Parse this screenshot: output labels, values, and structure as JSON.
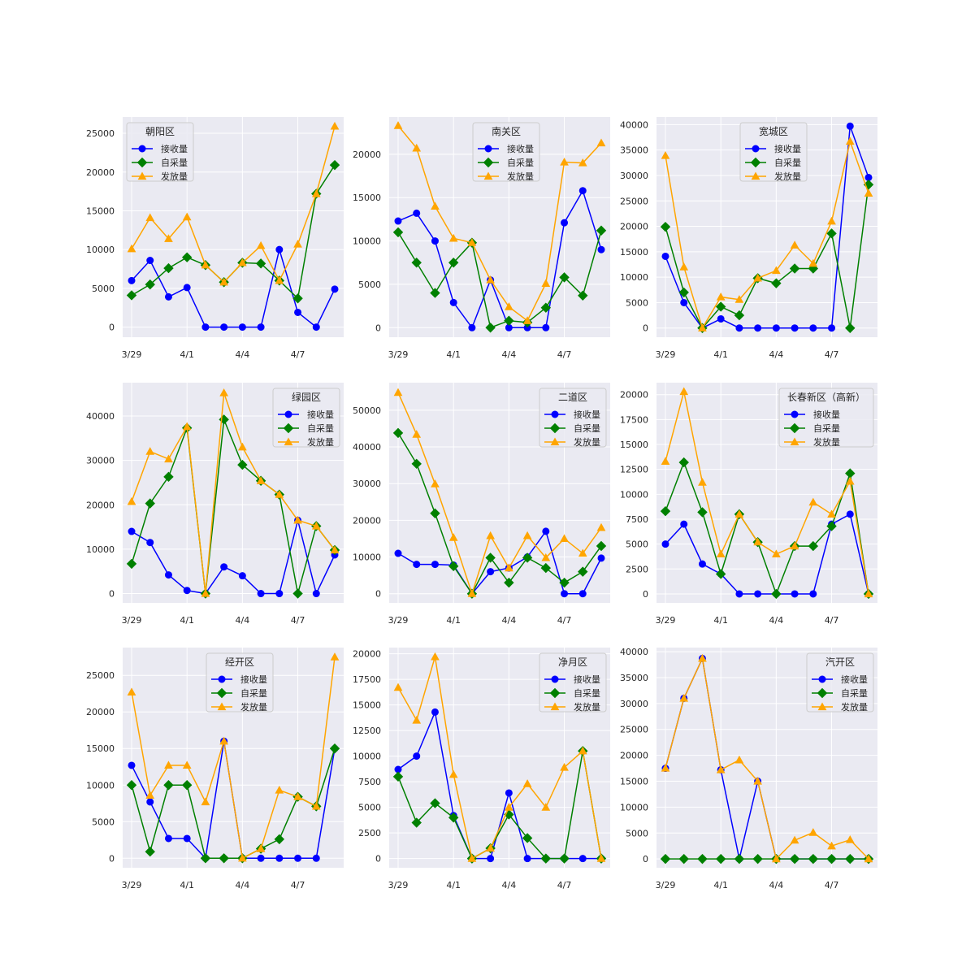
{
  "figure": {
    "x_tick_labels": [
      "3/29",
      "4/1",
      "4/4",
      "4/7"
    ],
    "x_tick_indices": [
      0,
      3,
      6,
      9
    ],
    "colors": {
      "接收量": "#0000ff",
      "自采量": "#008000",
      "发放量": "#ffa500",
      "plot_bg": "#eaeaf2",
      "grid": "#ffffff"
    }
  },
  "chart_data": [
    {
      "type": "line",
      "title": "朝阳区",
      "legend_position": "upper-left",
      "x": [
        "3/29",
        "3/30",
        "3/31",
        "4/1",
        "4/2",
        "4/3",
        "4/4",
        "4/5",
        "4/6",
        "4/7",
        "4/8",
        "4/9"
      ],
      "ylim": [
        -1300,
        27100
      ],
      "yticks": [
        0,
        5000,
        10000,
        15000,
        20000,
        25000
      ],
      "series": [
        {
          "name": "接收量",
          "marker": "circle",
          "values": [
            6000,
            8600,
            3900,
            5100,
            0,
            0,
            0,
            0,
            10000,
            1900,
            0,
            4900
          ]
        },
        {
          "name": "自采量",
          "marker": "diamond",
          "values": [
            4100,
            5500,
            7600,
            9000,
            8000,
            5800,
            8300,
            8200,
            6000,
            3700,
            17200,
            20900
          ]
        },
        {
          "name": "发放量",
          "marker": "triangle",
          "values": [
            10100,
            14100,
            11400,
            14200,
            8000,
            5800,
            8300,
            10500,
            6000,
            10700,
            17200,
            25900
          ]
        }
      ]
    },
    {
      "type": "line",
      "title": "南关区",
      "legend_position": "upper-center",
      "x": [
        "3/29",
        "3/30",
        "3/31",
        "4/1",
        "4/2",
        "4/3",
        "4/4",
        "4/5",
        "4/6",
        "4/7",
        "4/8",
        "4/9"
      ],
      "ylim": [
        -1100,
        24300
      ],
      "yticks": [
        0,
        5000,
        10000,
        15000,
        20000
      ],
      "series": [
        {
          "name": "接收量",
          "marker": "circle",
          "values": [
            12300,
            13200,
            10000,
            2900,
            0,
            5500,
            0,
            0,
            0,
            12100,
            15800,
            9000
          ]
        },
        {
          "name": "自采量",
          "marker": "diamond",
          "values": [
            11000,
            7500,
            4000,
            7500,
            9800,
            0,
            800,
            600,
            2300,
            5800,
            3700,
            11200
          ]
        },
        {
          "name": "发放量",
          "marker": "triangle",
          "values": [
            23300,
            20700,
            14000,
            10300,
            9800,
            5500,
            2400,
            800,
            5100,
            19100,
            19000,
            21300
          ]
        }
      ]
    },
    {
      "type": "line",
      "title": "宽城区",
      "legend_position": "upper-center",
      "x": [
        "3/29",
        "3/30",
        "3/31",
        "4/1",
        "4/2",
        "4/3",
        "4/4",
        "4/5",
        "4/6",
        "4/7",
        "4/8",
        "4/9"
      ],
      "ylim": [
        -1800,
        41500
      ],
      "yticks": [
        0,
        5000,
        10000,
        15000,
        20000,
        25000,
        30000,
        35000,
        40000
      ],
      "series": [
        {
          "name": "接收量",
          "marker": "circle",
          "values": [
            14100,
            5000,
            0,
            1800,
            0,
            0,
            0,
            0,
            0,
            0,
            39700,
            29600
          ]
        },
        {
          "name": "自采量",
          "marker": "diamond",
          "values": [
            19900,
            7000,
            0,
            4200,
            2500,
            9800,
            8800,
            11700,
            11700,
            18600,
            0,
            28200
          ]
        },
        {
          "name": "发放量",
          "marker": "triangle",
          "values": [
            33900,
            12000,
            0,
            6100,
            5600,
            9800,
            11300,
            16300,
            12700,
            21000,
            36700,
            26500
          ]
        }
      ]
    },
    {
      "type": "line",
      "title": "绿园区",
      "legend_position": "upper-right",
      "x": [
        "3/29",
        "3/30",
        "3/31",
        "4/1",
        "4/2",
        "4/3",
        "4/4",
        "4/5",
        "4/6",
        "4/7",
        "4/8",
        "4/9"
      ],
      "ylim": [
        -2100,
        47500
      ],
      "yticks": [
        0,
        10000,
        20000,
        30000,
        40000
      ],
      "series": [
        {
          "name": "接收量",
          "marker": "circle",
          "values": [
            14000,
            11500,
            4200,
            700,
            0,
            6000,
            4000,
            0,
            0,
            16500,
            0,
            8700
          ]
        },
        {
          "name": "自采量",
          "marker": "diamond",
          "values": [
            6700,
            20300,
            26300,
            37300,
            0,
            39200,
            29000,
            25400,
            22300,
            0,
            15200,
            9800
          ]
        },
        {
          "name": "发放量",
          "marker": "triangle",
          "values": [
            20700,
            32000,
            30300,
            37600,
            0,
            45200,
            33000,
            25400,
            22300,
            16500,
            15200,
            9800
          ]
        }
      ]
    },
    {
      "type": "line",
      "title": "二道区",
      "legend_position": "upper-right",
      "x": [
        "3/29",
        "3/30",
        "3/31",
        "4/1",
        "4/2",
        "4/3",
        "4/4",
        "4/5",
        "4/6",
        "4/7",
        "4/8",
        "4/9"
      ],
      "ylim": [
        -2500,
        57500
      ],
      "yticks": [
        0,
        10000,
        20000,
        30000,
        40000,
        50000
      ],
      "series": [
        {
          "name": "接收量",
          "marker": "circle",
          "values": [
            11000,
            8000,
            8000,
            7800,
            0,
            6000,
            7000,
            10000,
            17000,
            0,
            0,
            9700
          ]
        },
        {
          "name": "自采量",
          "marker": "diamond",
          "values": [
            43800,
            35400,
            21900,
            7500,
            0,
            9800,
            3000,
            9800,
            7000,
            3000,
            6000,
            13000
          ]
        },
        {
          "name": "发放量",
          "marker": "triangle",
          "values": [
            54800,
            43400,
            29900,
            15300,
            0,
            15800,
            7000,
            15800,
            9800,
            15000,
            11000,
            18000
          ]
        }
      ]
    },
    {
      "type": "line",
      "title": "长春新区（高新）",
      "legend_position": "upper-right",
      "x": [
        "3/29",
        "3/30",
        "3/31",
        "4/1",
        "4/2",
        "4/3",
        "4/4",
        "4/5",
        "4/6",
        "4/7",
        "4/8",
        "4/9"
      ],
      "ylim": [
        -900,
        21200
      ],
      "yticks": [
        0,
        2500,
        5000,
        7500,
        10000,
        12500,
        15000,
        17500,
        20000
      ],
      "series": [
        {
          "name": "接收量",
          "marker": "circle",
          "values": [
            5000,
            7000,
            3000,
            2000,
            0,
            0,
            0,
            0,
            0,
            7000,
            8000,
            0
          ]
        },
        {
          "name": "自采量",
          "marker": "diamond",
          "values": [
            8300,
            13200,
            8200,
            2000,
            8000,
            5200,
            0,
            4800,
            4800,
            6800,
            12100,
            0
          ]
        },
        {
          "name": "发放量",
          "marker": "triangle",
          "values": [
            13300,
            20300,
            11200,
            4000,
            8000,
            5200,
            4000,
            4800,
            9200,
            8000,
            11300,
            0
          ]
        }
      ]
    },
    {
      "type": "line",
      "title": "经开区",
      "legend_position": "upper-center",
      "x": [
        "3/29",
        "3/30",
        "3/31",
        "4/1",
        "4/2",
        "4/3",
        "4/4",
        "4/5",
        "4/6",
        "4/7",
        "4/8",
        "4/9"
      ],
      "ylim": [
        -1300,
        28800
      ],
      "yticks": [
        0,
        5000,
        10000,
        15000,
        20000,
        25000
      ],
      "series": [
        {
          "name": "接收量",
          "marker": "circle",
          "values": [
            12700,
            7700,
            2700,
            2700,
            0,
            16000,
            0,
            0,
            0,
            0,
            0,
            15000
          ]
        },
        {
          "name": "自采量",
          "marker": "diamond",
          "values": [
            10000,
            900,
            10000,
            10000,
            0,
            0,
            0,
            1300,
            2600,
            8400,
            7100,
            15000
          ]
        },
        {
          "name": "发放量",
          "marker": "triangle",
          "values": [
            22700,
            8600,
            12700,
            12700,
            7700,
            16000,
            0,
            1300,
            9300,
            8400,
            7100,
            27500
          ]
        }
      ]
    },
    {
      "type": "line",
      "title": "净月区",
      "legend_position": "upper-right",
      "x": [
        "3/29",
        "3/30",
        "3/31",
        "4/1",
        "4/2",
        "4/3",
        "4/4",
        "4/5",
        "4/6",
        "4/7",
        "4/8",
        "4/9"
      ],
      "ylim": [
        -900,
        20600
      ],
      "yticks": [
        0,
        2500,
        5000,
        7500,
        10000,
        12500,
        15000,
        17500,
        20000
      ],
      "series": [
        {
          "name": "接收量",
          "marker": "circle",
          "values": [
            8700,
            10000,
            14300,
            4200,
            0,
            0,
            6400,
            0,
            0,
            0,
            0,
            0
          ]
        },
        {
          "name": "自采量",
          "marker": "diamond",
          "values": [
            8000,
            3500,
            5400,
            4000,
            0,
            1000,
            4300,
            2000,
            0,
            0,
            10500,
            0
          ]
        },
        {
          "name": "发放量",
          "marker": "triangle",
          "values": [
            16700,
            13500,
            19700,
            8200,
            0,
            1000,
            5000,
            7300,
            5000,
            8900,
            10500,
            0
          ]
        }
      ]
    },
    {
      "type": "line",
      "title": "汽开区",
      "legend_position": "upper-right",
      "x": [
        "3/29",
        "3/30",
        "3/31",
        "4/1",
        "4/2",
        "4/3",
        "4/4",
        "4/5",
        "4/6",
        "4/7",
        "4/8",
        "4/9"
      ],
      "ylim": [
        -1700,
        40800
      ],
      "yticks": [
        0,
        5000,
        10000,
        15000,
        20000,
        25000,
        30000,
        35000,
        40000
      ],
      "series": [
        {
          "name": "接收量",
          "marker": "circle",
          "values": [
            17500,
            31000,
            38700,
            17200,
            0,
            15000,
            0,
            0,
            0,
            0,
            0,
            0
          ]
        },
        {
          "name": "自采量",
          "marker": "diamond",
          "values": [
            0,
            0,
            0,
            0,
            0,
            0,
            0,
            0,
            0,
            0,
            0,
            0
          ]
        },
        {
          "name": "发放量",
          "marker": "triangle",
          "values": [
            17500,
            31000,
            38700,
            17200,
            19100,
            15000,
            0,
            3600,
            5100,
            2500,
            3700,
            0
          ]
        }
      ]
    }
  ]
}
